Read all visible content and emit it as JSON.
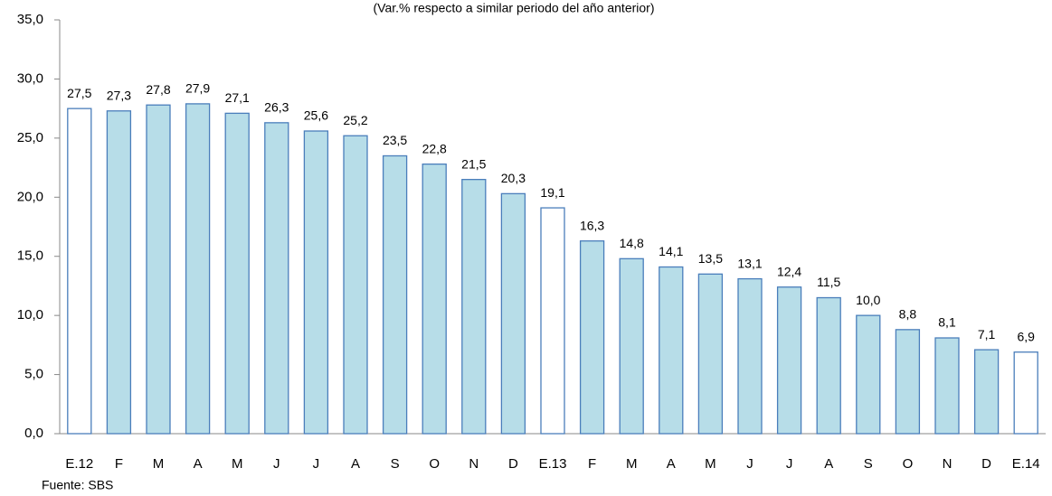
{
  "chart_data": {
    "type": "bar",
    "subtitle": "(Var.% respecto a similar periodo del año anterior)",
    "source": "Fuente: SBS",
    "categories": [
      "E.12",
      "F",
      "M",
      "A",
      "M",
      "J",
      "J",
      "A",
      "S",
      "O",
      "N",
      "D",
      "E.13",
      "F",
      "M",
      "A",
      "M",
      "J",
      "J",
      "A",
      "S",
      "O",
      "N",
      "D",
      "E.14"
    ],
    "values": [
      27.5,
      27.3,
      27.8,
      27.9,
      27.1,
      26.3,
      25.6,
      25.2,
      23.5,
      22.8,
      21.5,
      20.3,
      19.1,
      16.3,
      14.8,
      14.1,
      13.5,
      13.1,
      12.4,
      11.5,
      10.0,
      8.8,
      8.1,
      7.1,
      6.9
    ],
    "value_labels": [
      "27,5",
      "27,3",
      "27,8",
      "27,9",
      "27,1",
      "26,3",
      "25,6",
      "25,2",
      "23,5",
      "22,8",
      "21,5",
      "20,3",
      "19,1",
      "16,3",
      "14,8",
      "14,1",
      "13,5",
      "13,1",
      "12,4",
      "11,5",
      "10,0",
      "8,8",
      "8,1",
      "7,1",
      "6,9"
    ],
    "colors": [
      "#ffffff",
      "#b7dde8",
      "#b7dde8",
      "#b7dde8",
      "#b7dde8",
      "#b7dde8",
      "#b7dde8",
      "#b7dde8",
      "#b7dde8",
      "#b7dde8",
      "#b7dde8",
      "#b7dde8",
      "#ffffff",
      "#b7dde8",
      "#b7dde8",
      "#b7dde8",
      "#b7dde8",
      "#b7dde8",
      "#b7dde8",
      "#b7dde8",
      "#b7dde8",
      "#b7dde8",
      "#b7dde8",
      "#b7dde8",
      "#ffffff"
    ],
    "edge_color": "#4a7ebb",
    "ylim": [
      0,
      35
    ],
    "yticks": [
      {
        "value": 0,
        "label": "0,0"
      },
      {
        "value": 5,
        "label": "5,0"
      },
      {
        "value": 10,
        "label": "10,0"
      },
      {
        "value": 15,
        "label": "15,0"
      },
      {
        "value": 20,
        "label": "20,0"
      },
      {
        "value": 25,
        "label": "25,0"
      },
      {
        "value": 30,
        "label": "30,0"
      },
      {
        "value": 35,
        "label": "35,0"
      }
    ],
    "grid": false
  }
}
